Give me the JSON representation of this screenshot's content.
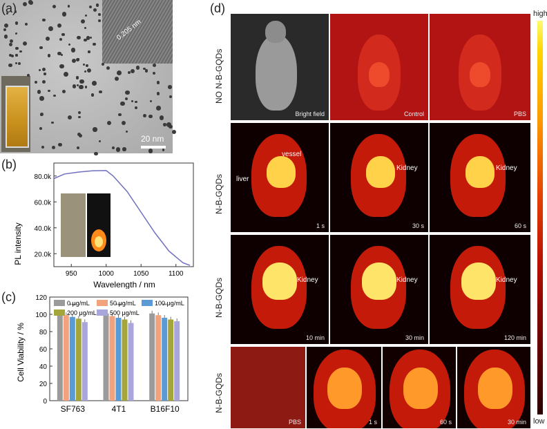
{
  "figure": {
    "panel_labels": {
      "a": "(a)",
      "b": "(b)",
      "c": "(c)",
      "d": "(d)"
    },
    "tem": {
      "scale_bar": "20 nm",
      "lattice_spacing": "0.205 nm"
    },
    "spectrum": {
      "xlabel": "Wavelength / nm",
      "ylabel": "PL intensity",
      "xticks": [
        "950",
        "1000",
        "1050",
        "1100"
      ],
      "yticks": [
        "20.0k",
        "40.0k",
        "60.0k",
        "80.0k"
      ],
      "line_color": "#6f6fc0"
    },
    "viability": {
      "ylabel": "Cell Viability / %",
      "legend": [
        "0 μg/mL",
        "50 μg/mL",
        "100 μg/mL",
        "200 μg/mL",
        "500 μg/mL"
      ],
      "colors": [
        "#9b9b9b",
        "#f2a27c",
        "#5b9bd5",
        "#a5a63a",
        "#a9a6dc"
      ],
      "groups": [
        "SF763",
        "4T1",
        "B16F10"
      ],
      "yticks": [
        "0",
        "20",
        "40",
        "60",
        "80",
        "100",
        "120"
      ],
      "sig": [
        "***",
        "***",
        "**"
      ]
    },
    "imaging": {
      "row_labels": [
        "NO N-B-GQDs",
        "N-B-GQDs",
        "N-B-GQDs",
        "N-B-GQDs"
      ],
      "row1_caps": [
        "Bright field",
        "Control",
        "PBS"
      ],
      "row2_caps": [
        "1 s",
        "30 s",
        "60 s"
      ],
      "row3_caps": [
        "10 min",
        "30 min",
        "120 min"
      ],
      "row4_caps": [
        "PBS",
        "1 s",
        "60 s",
        "30 min"
      ],
      "annotations": {
        "vessel": "vessel",
        "liver": "liver",
        "kidney": "Kidney"
      },
      "colorbar_high": "high",
      "colorbar_low": "low"
    }
  },
  "chart_data": [
    {
      "type": "line",
      "title": "",
      "xlabel": "Wavelength / nm",
      "ylabel": "PL intensity",
      "xlim": [
        925,
        1125
      ],
      "ylim": [
        10000,
        90000
      ],
      "series": [
        {
          "x": [
            925,
            940,
            960,
            980,
            1000,
            1010,
            1030,
            1050,
            1070,
            1090,
            1110,
            1120
          ],
          "values": [
            78000,
            81500,
            83000,
            84000,
            84200,
            80000,
            68000,
            52000,
            36000,
            22000,
            13000,
            11000
          ]
        }
      ]
    },
    {
      "type": "bar",
      "title": "",
      "xlabel": "",
      "ylabel": "Cell Viability / %",
      "ylim": [
        0,
        120
      ],
      "categories": [
        "SF763",
        "4T1",
        "B16F10"
      ],
      "series": [
        {
          "name": "0 μg/mL",
          "values": [
            100,
            101,
            101
          ]
        },
        {
          "name": "50 μg/mL",
          "values": [
            99,
            98,
            99
          ]
        },
        {
          "name": "100 μg/mL",
          "values": [
            97,
            96,
            96
          ]
        },
        {
          "name": "200 μg/mL",
          "values": [
            95,
            94,
            94
          ]
        },
        {
          "name": "500 μg/mL",
          "values": [
            91,
            90,
            92
          ]
        }
      ]
    }
  ]
}
